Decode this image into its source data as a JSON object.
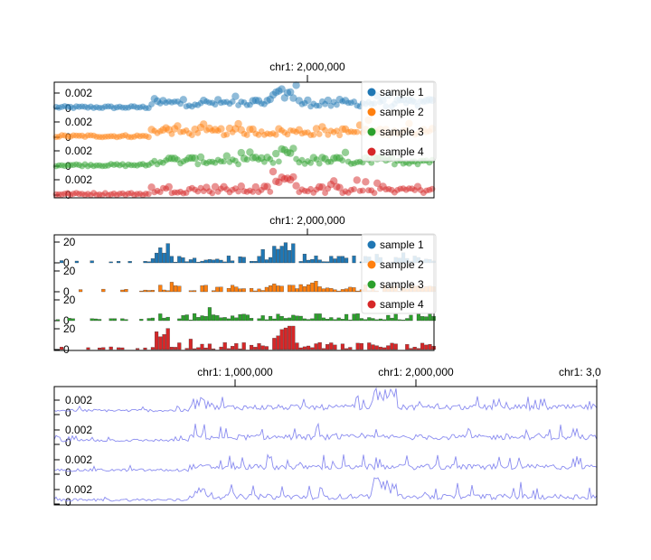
{
  "chart_data": [
    {
      "type": "scatter",
      "top_axis_label": "chr1: 2,000,000",
      "x": [
        1400000,
        2000000
      ],
      "track_ticks": [
        "0.002",
        "0"
      ],
      "series": [
        {
          "name": "sample 1",
          "color": "#1f77b4"
        },
        {
          "name": "sample 2",
          "color": "#ff7f0e"
        },
        {
          "name": "sample 3",
          "color": "#2ca02c"
        },
        {
          "name": "sample 4",
          "color": "#d62728"
        }
      ],
      "legend": "right"
    },
    {
      "type": "bar",
      "top_axis_label": "chr1: 2,000,000",
      "track_ticks": [
        "20",
        "0"
      ],
      "series": [
        {
          "name": "sample 1",
          "color": "#1f77b4"
        },
        {
          "name": "sample 2",
          "color": "#ff7f0e"
        },
        {
          "name": "sample 3",
          "color": "#2ca02c"
        },
        {
          "name": "sample 4",
          "color": "#d62728"
        }
      ],
      "legend": "right"
    },
    {
      "type": "line",
      "top_axis_labels": [
        "chr1: 1,000,000",
        "chr1: 2,000,000",
        "chr1: 3,0"
      ],
      "track_ticks": [
        "0.002",
        "0"
      ],
      "line_color": "#8a8cf0",
      "tracks": 4
    }
  ]
}
